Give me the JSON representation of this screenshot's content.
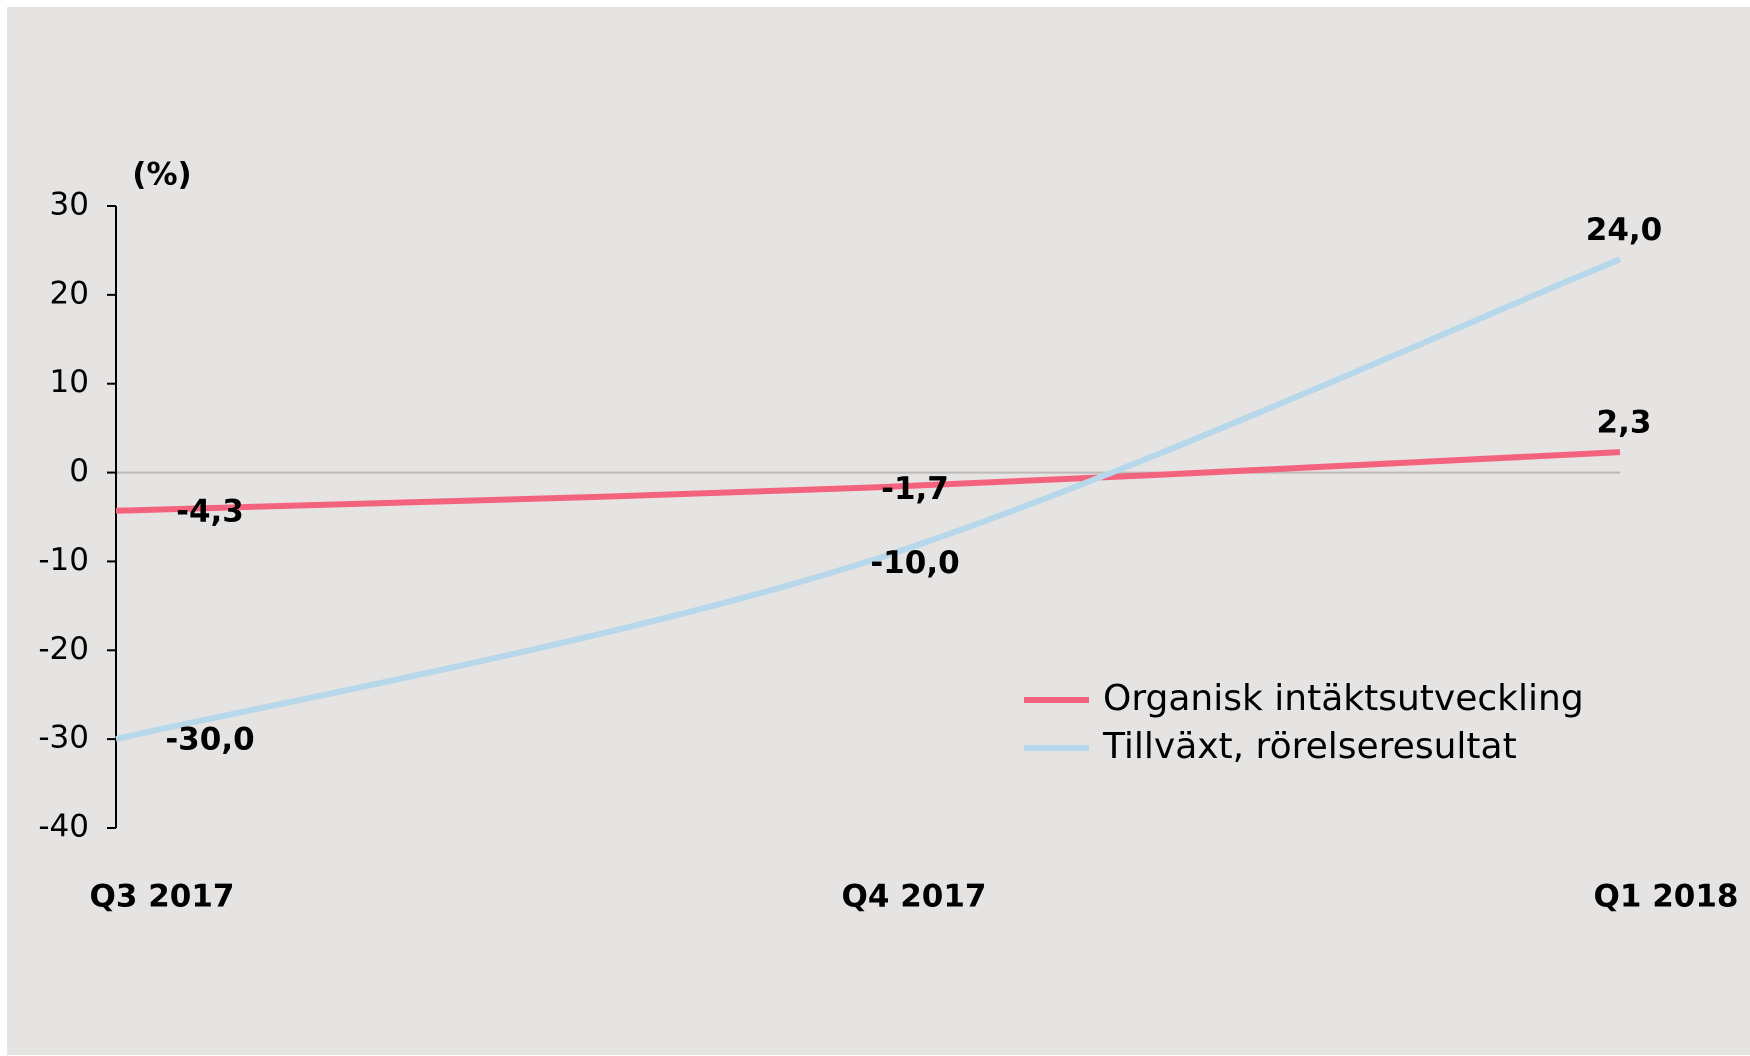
{
  "chart_data": {
    "type": "line",
    "y_label": "(%)",
    "categories": [
      "Q3 2017",
      "Q4 2017",
      "Q1 2018"
    ],
    "series": [
      {
        "name": "Organisk intäktsutveckling",
        "color": "#f4637d",
        "values": [
          -4.3,
          -1.7,
          2.3
        ],
        "value_labels": [
          "-4,3",
          "-1,7",
          "2,3"
        ]
      },
      {
        "name": "Tillväxt, rörelseresultat",
        "color": "#b7d7ea",
        "values": [
          -30,
          -10,
          24
        ],
        "value_labels": [
          "-30,0",
          "-10,0",
          "24,0"
        ]
      }
    ],
    "ylim": [
      -40,
      30
    ],
    "yticks": [
      30,
      20,
      10,
      0,
      -10,
      -20,
      -30,
      -40
    ],
    "legend": "lower right",
    "grid": false
  }
}
